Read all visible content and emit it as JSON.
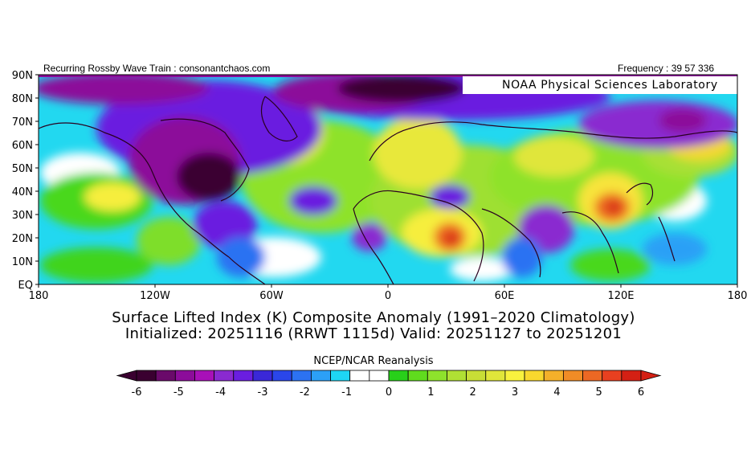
{
  "header": {
    "left": "Recurring Rossby Wave Train : consonantchaos.com",
    "right": "Frequency : 39 57 336",
    "lab_label": "NOAA Physical Sciences Laboratory"
  },
  "map": {
    "lat_labels": [
      "90N",
      "80N",
      "70N",
      "60N",
      "50N",
      "40N",
      "30N",
      "20N",
      "10N",
      "EQ"
    ],
    "lon_labels": [
      "180",
      "120W",
      "60W",
      "0",
      "60E",
      "120E",
      "180"
    ]
  },
  "titles": {
    "line1": "Surface Lifted Index (K) Composite Anomaly (1991–2020 Climatology)",
    "line2": "Initialized: 20251116 (RRWT 1115d) Valid: 20251127 to 20251201"
  },
  "source": "NCEP/NCAR Reanalysis",
  "colorbar": {
    "tick_labels": [
      "-6",
      "-5",
      "-4",
      "-3",
      "-2",
      "-1",
      "0",
      "1",
      "2",
      "3",
      "4",
      "5",
      "6"
    ],
    "colors": [
      "#3a0030",
      "#6a0a6a",
      "#8c0c9a",
      "#a810b8",
      "#8a2ad0",
      "#6a1ee0",
      "#3a28d8",
      "#2a46ea",
      "#2c72f2",
      "#2ca0f6",
      "#1ed6f4",
      "#ffffff",
      "#ffffff",
      "#28d01a",
      "#60dc1e",
      "#8ee22c",
      "#b0e034",
      "#c8de36",
      "#e0e63a",
      "#f8f23e",
      "#f8d82e",
      "#f4b02a",
      "#f08c26",
      "#ec6824",
      "#e84020",
      "#d42014"
    ]
  }
}
